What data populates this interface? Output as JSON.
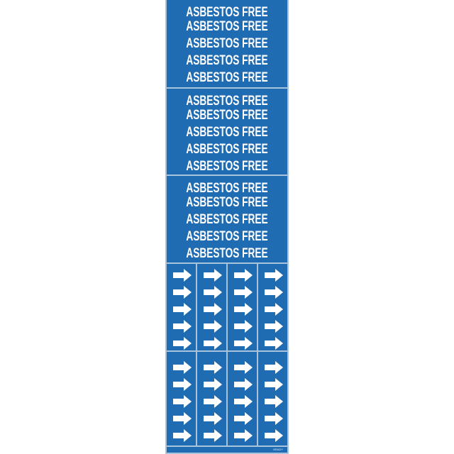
{
  "label_text": "ASBESTOS FREE",
  "text_panels": [
    {
      "rows": [
        "ASBESTOS FREE",
        "ASBESTOS FREE",
        "ASBESTOS FREE",
        "ASBESTOS FREE",
        "ASBESTOS FREE"
      ]
    },
    {
      "rows": [
        "ASBESTOS FREE",
        "ASBESTOS FREE",
        "ASBESTOS FREE",
        "ASBESTOS FREE",
        "ASBESTOS FREE"
      ]
    },
    {
      "rows": [
        "ASBESTOS FREE",
        "ASBESTOS FREE",
        "ASBESTOS FREE",
        "ASBESTOS FREE",
        "ASBESTOS FREE"
      ]
    }
  ],
  "arrow_panels": [
    {
      "columns": 4,
      "arrows_per_column": 5,
      "direction": "right"
    },
    {
      "columns": 4,
      "arrows_per_column": 5,
      "direction": "right"
    }
  ],
  "footer": {
    "brand": "BRADY"
  },
  "colors": {
    "label_background": "#1f6cb3",
    "text": "#ffffff",
    "divider": "#a9c3dc"
  },
  "icons": {
    "arrow": "arrow-right-icon",
    "logo": "brand-logo-icon"
  }
}
